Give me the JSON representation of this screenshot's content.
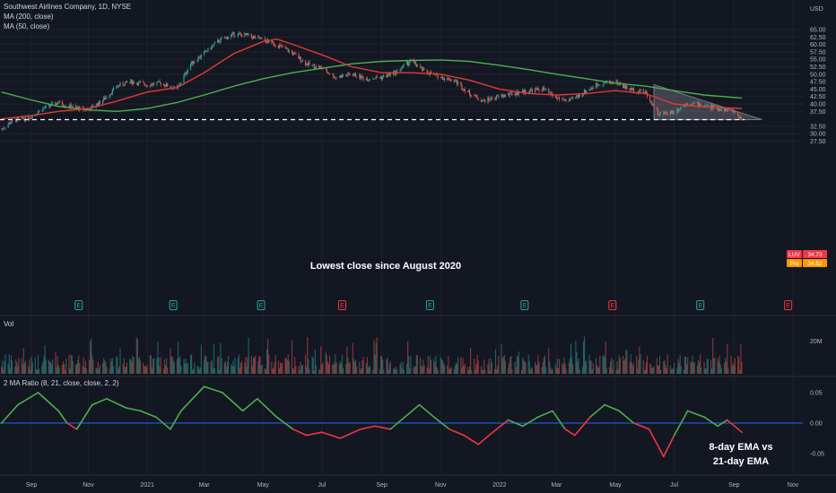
{
  "header": {
    "title": "Southwest Airlines Company, 1D, NYSE",
    "ma_200": "MA (200, close)",
    "ma_50": "MA (50, close)",
    "currency": "USD"
  },
  "volume_panel": {
    "label": "Vol",
    "tick": "20M"
  },
  "ratio_panel": {
    "label": "2 MA Ratio (8, 21, close, close, 2, 2)"
  },
  "annotations": {
    "lowest_close": "Lowest close since August 2020",
    "ema_line1": "8-day EMA vs",
    "ema_line2": "21-day EMA"
  },
  "price_tags": [
    {
      "badge": "LUV",
      "value": "34.73",
      "color": "#f23645"
    },
    {
      "badge": "Pre",
      "value": "34.52",
      "color": "#ff9800"
    }
  ],
  "earnings_marker": "E",
  "colors": {
    "background": "#131722",
    "up": "#26a69a",
    "down": "#ef5350",
    "ma200": "#4caf50",
    "ma50": "#e53935",
    "ratio_pos": "#4caf50",
    "ratio_neg": "#f23645",
    "zero_line": "#2962ff"
  },
  "chart_data": {
    "type": "line",
    "title": "Southwest Airlines Company, 1D, NYSE",
    "x_ticks": [
      "Sep",
      "Nov",
      "2021",
      "Mar",
      "May",
      "Jul",
      "Sep",
      "Nov",
      "2022",
      "Mar",
      "May",
      "Jul",
      "Sep",
      "Nov"
    ],
    "price_axis": {
      "ticks": [
        "65.00",
        "62.50",
        "60.00",
        "57.50",
        "55.00",
        "52.50",
        "50.00",
        "47.50",
        "45.00",
        "42.50",
        "40.00",
        "37.50",
        "32.50",
        "30.00",
        "27.50"
      ],
      "ylim": [
        27.5,
        66.5
      ]
    },
    "series": [
      {
        "name": "Price (close)",
        "points": [
          [
            "2020-08-03",
            31.5
          ],
          [
            "2020-08-15",
            34.5
          ],
          [
            "2020-09-01",
            35.5
          ],
          [
            "2020-09-15",
            38.5
          ],
          [
            "2020-10-01",
            40.5
          ],
          [
            "2020-10-15",
            39.0
          ],
          [
            "2020-11-01",
            38.0
          ],
          [
            "2020-11-15",
            41.0
          ],
          [
            "2020-12-01",
            46.0
          ],
          [
            "2020-12-15",
            47.5
          ],
          [
            "2021-01-01",
            46.5
          ],
          [
            "2021-01-15",
            47.0
          ],
          [
            "2021-02-01",
            45.0
          ],
          [
            "2021-02-15",
            53.5
          ],
          [
            "2021-03-01",
            57.0
          ],
          [
            "2021-03-15",
            61.0
          ],
          [
            "2021-04-01",
            63.5
          ],
          [
            "2021-04-15",
            63.0
          ],
          [
            "2021-05-01",
            61.5
          ],
          [
            "2021-05-15",
            60.0
          ],
          [
            "2021-06-01",
            57.0
          ],
          [
            "2021-06-15",
            53.5
          ],
          [
            "2021-07-01",
            52.0
          ],
          [
            "2021-07-15",
            49.0
          ],
          [
            "2021-08-01",
            50.0
          ],
          [
            "2021-08-15",
            48.5
          ],
          [
            "2021-09-01",
            49.0
          ],
          [
            "2021-09-15",
            50.5
          ],
          [
            "2021-10-01",
            54.5
          ],
          [
            "2021-10-15",
            51.0
          ],
          [
            "2021-11-01",
            49.0
          ],
          [
            "2021-11-15",
            48.0
          ],
          [
            "2021-12-01",
            43.5
          ],
          [
            "2021-12-15",
            41.0
          ],
          [
            "2022-01-01",
            42.5
          ],
          [
            "2022-01-15",
            43.5
          ],
          [
            "2022-02-01",
            44.5
          ],
          [
            "2022-02-15",
            45.0
          ],
          [
            "2022-03-01",
            42.0
          ],
          [
            "2022-03-15",
            41.0
          ],
          [
            "2022-04-01",
            44.5
          ],
          [
            "2022-04-15",
            47.0
          ],
          [
            "2022-05-01",
            47.5
          ],
          [
            "2022-05-15",
            45.0
          ],
          [
            "2022-06-01",
            44.0
          ],
          [
            "2022-06-15",
            36.5
          ],
          [
            "2022-07-01",
            37.5
          ],
          [
            "2022-07-15",
            40.5
          ],
          [
            "2022-08-01",
            39.5
          ],
          [
            "2022-08-15",
            38.5
          ],
          [
            "2022-09-01",
            37.5
          ],
          [
            "2022-09-09",
            34.73
          ]
        ]
      },
      {
        "name": "MA (200, close)",
        "points": [
          [
            "2020-08-03",
            44.0
          ],
          [
            "2020-09-01",
            41.5
          ],
          [
            "2020-10-01",
            39.2
          ],
          [
            "2020-11-01",
            38.0
          ],
          [
            "2020-12-01",
            37.5
          ],
          [
            "2021-01-01",
            38.5
          ],
          [
            "2021-02-01",
            40.5
          ],
          [
            "2021-03-01",
            43.0
          ],
          [
            "2021-04-01",
            46.0
          ],
          [
            "2021-05-01",
            48.5
          ],
          [
            "2021-06-01",
            50.5
          ],
          [
            "2021-07-01",
            52.0
          ],
          [
            "2021-08-01",
            53.5
          ],
          [
            "2021-09-01",
            54.3
          ],
          [
            "2021-10-01",
            54.6
          ],
          [
            "2021-11-01",
            54.8
          ],
          [
            "2021-12-01",
            54.3
          ],
          [
            "2022-01-01",
            53.0
          ],
          [
            "2022-02-01",
            51.5
          ],
          [
            "2022-03-01",
            50.0
          ],
          [
            "2022-04-01",
            48.5
          ],
          [
            "2022-05-01",
            47.0
          ],
          [
            "2022-06-01",
            46.0
          ],
          [
            "2022-07-01",
            44.5
          ],
          [
            "2022-08-01",
            43.0
          ],
          [
            "2022-09-09",
            42.0
          ]
        ]
      },
      {
        "name": "MA (50, close)",
        "points": [
          [
            "2020-08-03",
            35.0
          ],
          [
            "2020-09-01",
            36.0
          ],
          [
            "2020-10-01",
            37.5
          ],
          [
            "2020-11-01",
            38.5
          ],
          [
            "2020-12-01",
            41.0
          ],
          [
            "2021-01-01",
            44.0
          ],
          [
            "2021-02-01",
            45.5
          ],
          [
            "2021-03-01",
            50.5
          ],
          [
            "2021-04-01",
            57.0
          ],
          [
            "2021-05-01",
            61.0
          ],
          [
            "2021-05-15",
            61.8
          ],
          [
            "2021-06-01",
            60.0
          ],
          [
            "2021-07-01",
            56.5
          ],
          [
            "2021-08-01",
            52.5
          ],
          [
            "2021-09-01",
            50.5
          ],
          [
            "2021-10-01",
            50.5
          ],
          [
            "2021-11-01",
            50.0
          ],
          [
            "2021-12-01",
            48.0
          ],
          [
            "2022-01-01",
            45.0
          ],
          [
            "2022-02-01",
            43.5
          ],
          [
            "2022-03-01",
            43.0
          ],
          [
            "2022-04-01",
            43.5
          ],
          [
            "2022-05-01",
            44.5
          ],
          [
            "2022-06-01",
            43.5
          ],
          [
            "2022-07-01",
            40.0
          ],
          [
            "2022-08-01",
            39.0
          ],
          [
            "2022-09-09",
            38.5
          ]
        ]
      }
    ],
    "support_level": 34.73,
    "earnings_dates": [
      "2020-10-22",
      "2021-01-28",
      "2021-04-29",
      "2021-07-22",
      "2021-10-21",
      "2022-01-27",
      "2022-04-28",
      "2022-07-28",
      "2022-10-27"
    ],
    "volume": {
      "ticks": [
        "20M"
      ]
    },
    "ratio": {
      "name": "2 MA Ratio (8, 21, close, close, 2, 2)",
      "ticks": [
        "0.05",
        "0.00",
        "-0.05"
      ],
      "ylim": [
        -0.075,
        0.075
      ],
      "points": [
        [
          "2020-08-03",
          0.0
        ],
        [
          "2020-08-20",
          0.03
        ],
        [
          "2020-09-10",
          0.05
        ],
        [
          "2020-10-01",
          0.02
        ],
        [
          "2020-10-10",
          0.0
        ],
        [
          "2020-10-20",
          -0.01
        ],
        [
          "2020-11-05",
          0.03
        ],
        [
          "2020-11-20",
          0.04
        ],
        [
          "2020-12-10",
          0.025
        ],
        [
          "2020-12-25",
          0.02
        ],
        [
          "2021-01-10",
          0.01
        ],
        [
          "2021-01-25",
          -0.01
        ],
        [
          "2021-02-05",
          0.02
        ],
        [
          "2021-03-01",
          0.06
        ],
        [
          "2021-03-20",
          0.05
        ],
        [
          "2021-04-10",
          0.02
        ],
        [
          "2021-04-25",
          0.04
        ],
        [
          "2021-05-15",
          0.01
        ],
        [
          "2021-06-01",
          -0.01
        ],
        [
          "2021-06-15",
          -0.02
        ],
        [
          "2021-07-01",
          -0.015
        ],
        [
          "2021-07-20",
          -0.025
        ],
        [
          "2021-08-10",
          -0.01
        ],
        [
          "2021-08-25",
          -0.005
        ],
        [
          "2021-09-10",
          -0.01
        ],
        [
          "2021-09-25",
          0.01
        ],
        [
          "2021-10-10",
          0.03
        ],
        [
          "2021-10-25",
          0.01
        ],
        [
          "2021-11-10",
          -0.01
        ],
        [
          "2021-11-25",
          -0.02
        ],
        [
          "2021-12-10",
          -0.035
        ],
        [
          "2021-12-25",
          -0.015
        ],
        [
          "2022-01-10",
          0.005
        ],
        [
          "2022-01-25",
          -0.005
        ],
        [
          "2022-02-10",
          0.01
        ],
        [
          "2022-02-25",
          0.02
        ],
        [
          "2022-03-10",
          -0.01
        ],
        [
          "2022-03-20",
          -0.02
        ],
        [
          "2022-04-05",
          0.01
        ],
        [
          "2022-04-20",
          0.03
        ],
        [
          "2022-05-05",
          0.02
        ],
        [
          "2022-05-20",
          0.0
        ],
        [
          "2022-06-05",
          -0.01
        ],
        [
          "2022-06-20",
          -0.055
        ],
        [
          "2022-07-01",
          -0.02
        ],
        [
          "2022-07-15",
          0.02
        ],
        [
          "2022-08-01",
          0.01
        ],
        [
          "2022-08-15",
          -0.005
        ],
        [
          "2022-08-25",
          0.005
        ],
        [
          "2022-09-09",
          -0.015
        ]
      ]
    }
  }
}
